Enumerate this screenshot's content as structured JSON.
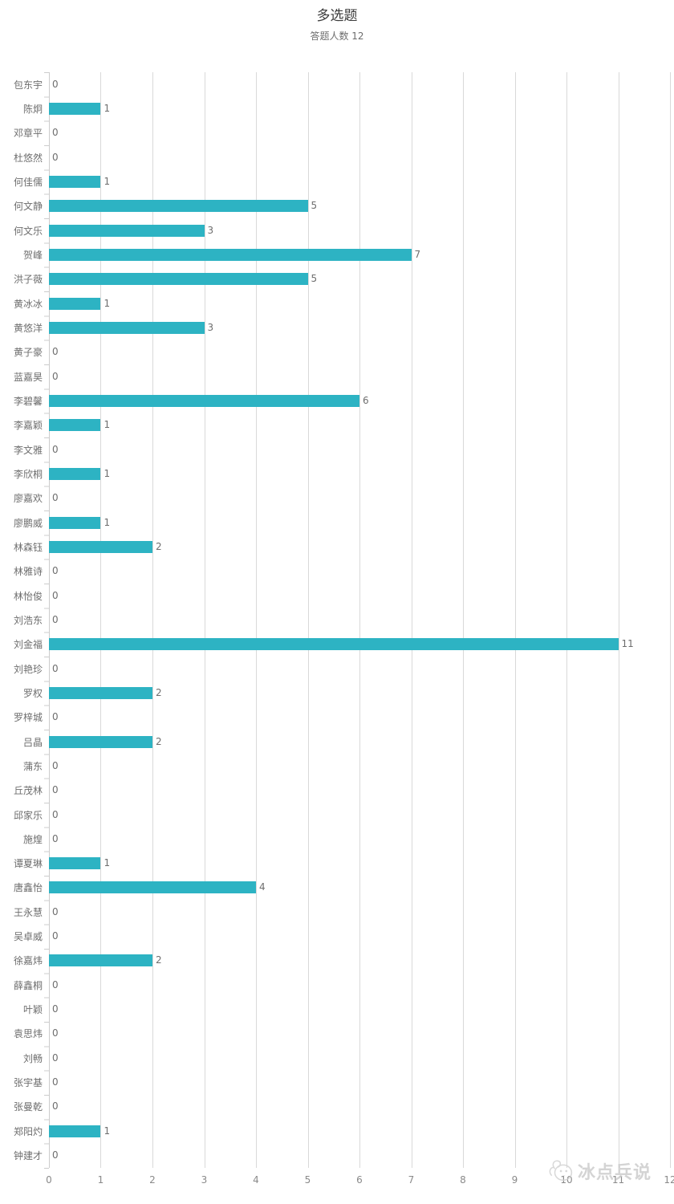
{
  "title": "多选题",
  "subtitle": "答题人数 12",
  "watermark": {
    "text": "冰点兵说",
    "logo": "penguin-logo"
  },
  "colors": {
    "bar": "#2db3c3",
    "grid": "#d9d9d9",
    "axis": "#cccccc",
    "category_label": "#6e6e6e",
    "value_label": "#6e6e6e",
    "tick_label": "#8a8a8a",
    "title": "#3b3b3b",
    "subtitle": "#6e6e6e",
    "watermark": "#cdcdcd"
  },
  "chart_data": {
    "type": "bar",
    "orientation": "horizontal",
    "title": "多选题",
    "subtitle": "答题人数 12",
    "xlabel": "",
    "ylabel": "",
    "xlim": [
      0,
      12
    ],
    "xticks": [
      0,
      1,
      2,
      3,
      4,
      5,
      6,
      7,
      8,
      9,
      10,
      11,
      12
    ],
    "grid": true,
    "legend": false,
    "bar_color": "#2db3c3",
    "categories": [
      "包东宇",
      "陈炯",
      "邓章平",
      "杜悠然",
      "何佳儒",
      "何文静",
      "何文乐",
      "贺峰",
      "洪子薇",
      "黄冰冰",
      "黄悠洋",
      "黄子豪",
      "蓝嘉昊",
      "李碧馨",
      "李嘉颖",
      "李文雅",
      "李欣桐",
      "廖嘉欢",
      "廖鹏威",
      "林森钰",
      "林雅诗",
      "林怡俊",
      "刘浩东",
      "刘金福",
      "刘艳珍",
      "罗权",
      "罗梓城",
      "吕晶",
      "蒲东",
      "丘茂林",
      "邱家乐",
      "施煌",
      "谭夏琳",
      "唐鑫怡",
      "王永慧",
      "吴卓威",
      "徐嘉炜",
      "薛鑫桐",
      "叶颖",
      "袁思炜",
      "刘畅",
      "张宇基",
      "张曼乾",
      "郑阳灼",
      "钟建才"
    ],
    "values": [
      0,
      1,
      0,
      0,
      1,
      5,
      3,
      7,
      5,
      1,
      3,
      0,
      0,
      6,
      1,
      0,
      1,
      0,
      1,
      2,
      0,
      0,
      0,
      11,
      0,
      2,
      0,
      2,
      0,
      0,
      0,
      0,
      1,
      4,
      0,
      0,
      2,
      0,
      0,
      0,
      0,
      0,
      0,
      1,
      0
    ]
  }
}
